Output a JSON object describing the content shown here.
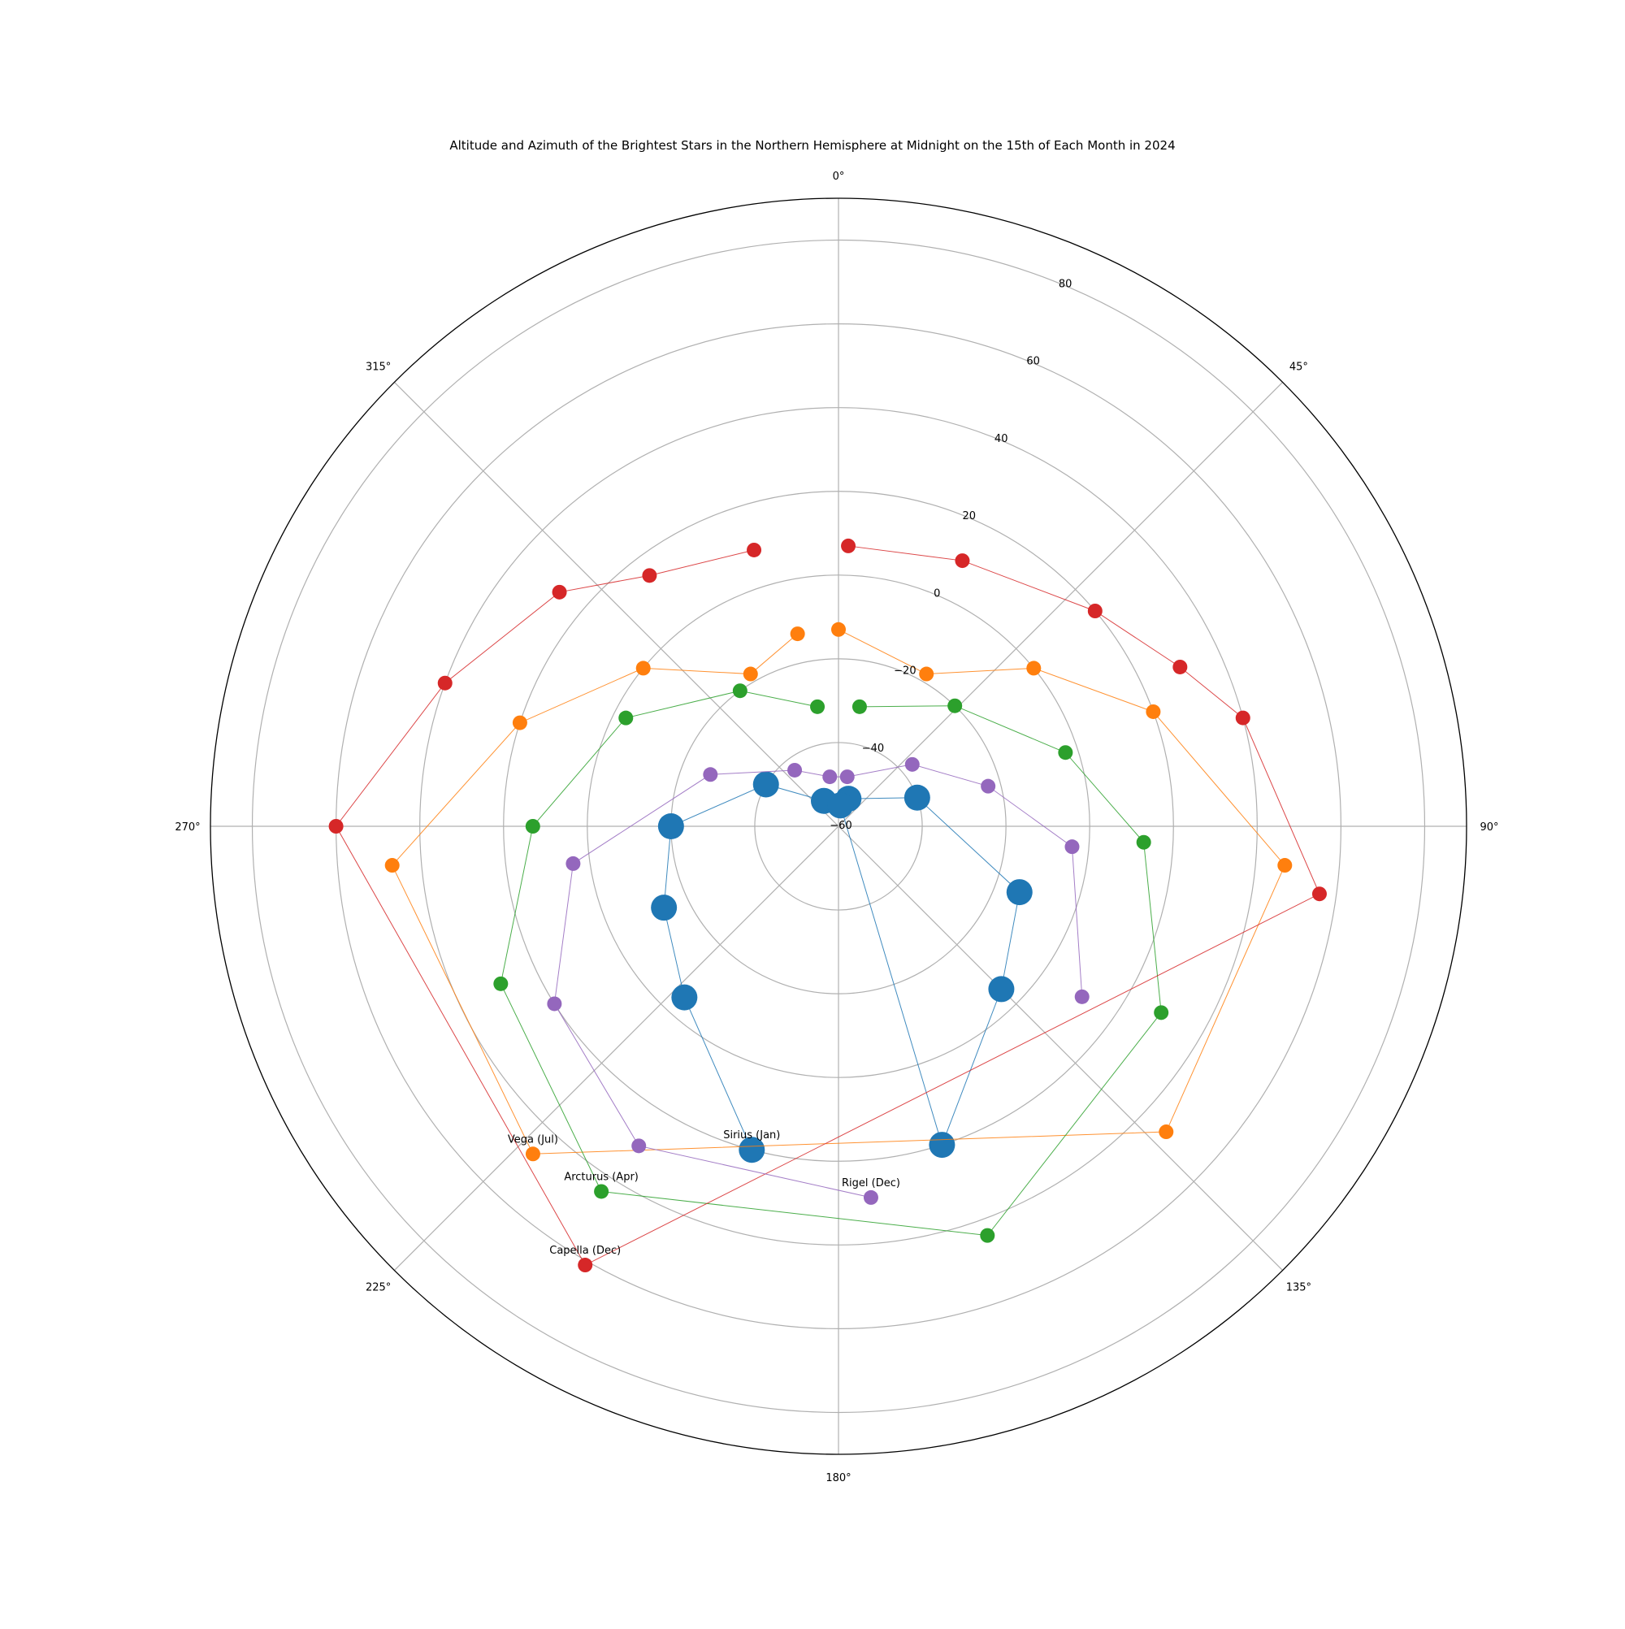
{
  "chart_data": {
    "type": "scatter",
    "projection": "polar",
    "title": "Altitude and Azimuth of the Brightest Stars in the Northern Hemisphere at Midnight on the 15th of Each Month in 2024",
    "theta_direction": "clockwise",
    "theta_zero": "north",
    "r_range": [
      -60,
      90
    ],
    "r_ticks": [
      -60,
      -40,
      -20,
      0,
      20,
      40,
      60,
      80
    ],
    "r_tick_labels": [
      "−60",
      "−40",
      "−20",
      "0",
      "20",
      "40",
      "60",
      "80"
    ],
    "r_label_angle_deg": 22.5,
    "theta_ticks": [
      0,
      45,
      90,
      135,
      180,
      225,
      270,
      315
    ],
    "theta_tick_labels": [
      "0°",
      "45°",
      "90°",
      "135°",
      "180°",
      "225°",
      "270°",
      "315°"
    ],
    "grid": true,
    "series": [
      {
        "color": "#1f77b4",
        "marker_size": "large",
        "points": [
          {
            "az": 195,
            "alt": 20
          },
          {
            "az": 222,
            "alt": -5
          },
          {
            "az": 245,
            "alt": -14
          },
          {
            "az": 270,
            "alt": -20
          },
          {
            "az": 300,
            "alt": -40
          },
          {
            "az": 330,
            "alt": -53
          },
          {
            "az": 20,
            "alt": -53
          },
          {
            "az": 70,
            "alt": -40
          },
          {
            "az": 110,
            "alt": -14
          },
          {
            "az": 135,
            "alt": -5
          },
          {
            "az": 162,
            "alt": 20
          },
          {
            "az": 5,
            "alt": -55
          }
        ]
      },
      {
        "color": "#ff7f0e",
        "marker_size": "small",
        "points": [
          {
            "az": 0,
            "alt": -13
          },
          {
            "az": 30,
            "alt": -18
          },
          {
            "az": 51,
            "alt": 0
          },
          {
            "az": 70,
            "alt": 20
          },
          {
            "az": 95,
            "alt": 47
          },
          {
            "az": 133,
            "alt": 47
          },
          {
            "az": 223,
            "alt": 47
          },
          {
            "az": 265,
            "alt": 47
          },
          {
            "az": 288,
            "alt": 20
          },
          {
            "az": 309,
            "alt": 0
          },
          {
            "az": 330,
            "alt": -18
          },
          {
            "az": 348,
            "alt": -13
          }
        ]
      },
      {
        "color": "#2ca02c",
        "marker_size": "small",
        "points": [
          {
            "az": 10,
            "alt": -31
          },
          {
            "az": 44,
            "alt": -20
          },
          {
            "az": 72,
            "alt": -3
          },
          {
            "az": 93,
            "alt": 13
          },
          {
            "az": 120,
            "alt": 29
          },
          {
            "az": 160,
            "alt": 44
          },
          {
            "az": 213,
            "alt": 44
          },
          {
            "az": 245,
            "alt": 29
          },
          {
            "az": 270,
            "alt": 13
          },
          {
            "az": 297,
            "alt": -3
          },
          {
            "az": 324,
            "alt": -20
          },
          {
            "az": 350,
            "alt": -31
          }
        ]
      },
      {
        "color": "#d62728",
        "marker_size": "small",
        "points": [
          {
            "az": 2,
            "alt": 7
          },
          {
            "az": 25,
            "alt": 10
          },
          {
            "az": 50,
            "alt": 20
          },
          {
            "az": 65,
            "alt": 30
          },
          {
            "az": 75,
            "alt": 40
          },
          {
            "az": 98,
            "alt": 56
          },
          {
            "az": 210,
            "alt": 61
          },
          {
            "az": 270,
            "alt": 60
          },
          {
            "az": 290,
            "alt": 40
          },
          {
            "az": 310,
            "alt": 27
          },
          {
            "az": 323,
            "alt": 15
          },
          {
            "az": 343,
            "alt": 9
          }
        ]
      },
      {
        "color": "#9467bd",
        "marker_size": "small",
        "points": [
          {
            "az": 175,
            "alt": 29
          },
          {
            "az": 212,
            "alt": 30
          },
          {
            "az": 238,
            "alt": 20
          },
          {
            "az": 262,
            "alt": 4
          },
          {
            "az": 292,
            "alt": -27
          },
          {
            "az": 322,
            "alt": -43
          },
          {
            "az": 350,
            "alt": -48
          },
          {
            "az": 10,
            "alt": -48
          },
          {
            "az": 50,
            "alt": -37
          },
          {
            "az": 75,
            "alt": -23
          },
          {
            "az": 95,
            "alt": -4
          },
          {
            "az": 125,
            "alt": 11
          }
        ]
      }
    ],
    "annotations": [
      {
        "text": "Sirius (Jan)",
        "az": 195,
        "alt": 20
      },
      {
        "text": "Rigel (Dec)",
        "az": 175,
        "alt": 29
      },
      {
        "text": "Vega (Jul)",
        "az": 223,
        "alt": 47
      },
      {
        "text": "Arcturus (Apr)",
        "az": 213,
        "alt": 44
      },
      {
        "text": "Capella (Dec)",
        "az": 210,
        "alt": 61
      }
    ]
  }
}
